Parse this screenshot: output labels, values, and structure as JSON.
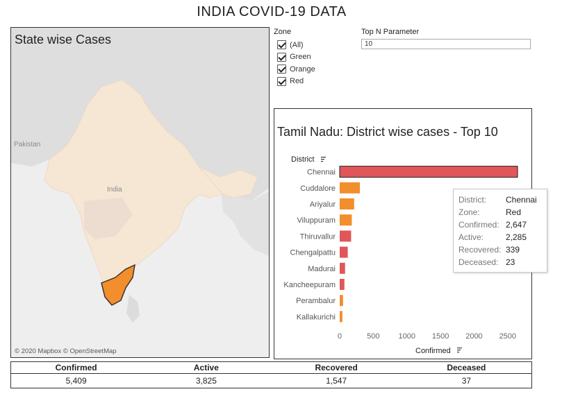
{
  "dashboard": {
    "title": "INDIA COVID-19 DATA"
  },
  "map": {
    "title": "State wise Cases",
    "attribution": "© 2020 Mapbox © OpenStreetMap",
    "labels": {
      "pakistan": "Pakistan",
      "india": "India"
    },
    "colors": {
      "highlight": "#f28e2b",
      "states": "#f6e6d4",
      "land": "#dcdcdc",
      "water": "#eeeeee"
    }
  },
  "zone_filter": {
    "title": "Zone",
    "options": [
      {
        "label": "(All)",
        "checked": true
      },
      {
        "label": "Green",
        "checked": true
      },
      {
        "label": "Orange",
        "checked": true
      },
      {
        "label": "Red",
        "checked": true
      }
    ]
  },
  "topn": {
    "title": "Top N Parameter",
    "value": "10"
  },
  "chart_data": {
    "type": "bar",
    "orientation": "horizontal",
    "title": "Tamil Nadu: District wise cases - Top 10",
    "ylabel": "District",
    "xlabel": "Confirmed",
    "categories": [
      "Chennai",
      "Cuddalore",
      "Ariyalur",
      "Viluppuram",
      "Thiruvallur",
      "Chengalpattu",
      "Madurai",
      "Kancheepuram",
      "Perambalur",
      "Kallakurichi"
    ],
    "values": [
      2647,
      300,
      215,
      180,
      170,
      120,
      80,
      70,
      50,
      40
    ],
    "zones": [
      "Red",
      "Orange",
      "Orange",
      "Orange",
      "Red",
      "Red",
      "Red",
      "Red",
      "Orange",
      "Orange"
    ],
    "zone_colors": {
      "Red": "#e15759",
      "Orange": "#f28e2b"
    },
    "xlim": [
      0,
      2750
    ],
    "xticks": [
      0,
      500,
      1000,
      1500,
      2000,
      2500
    ],
    "xtick_labels": [
      "0",
      "500",
      "1000",
      "1500",
      "2000",
      "2500"
    ],
    "highlighted": "Chennai"
  },
  "tooltip": {
    "rows": [
      {
        "key": "District:",
        "value": "Chennai"
      },
      {
        "key": "Zone:",
        "value": "Red"
      },
      {
        "key": "Confirmed:",
        "value": "2,647"
      },
      {
        "key": "Active:",
        "value": "2,285"
      },
      {
        "key": "Recovered:",
        "value": "339"
      },
      {
        "key": "Deceased:",
        "value": "23"
      }
    ]
  },
  "kpi": {
    "columns": [
      {
        "label": "Confirmed",
        "value": "5,409"
      },
      {
        "label": "Active",
        "value": "3,825"
      },
      {
        "label": "Recovered",
        "value": "1,547"
      },
      {
        "label": "Deceased",
        "value": "37"
      }
    ]
  }
}
